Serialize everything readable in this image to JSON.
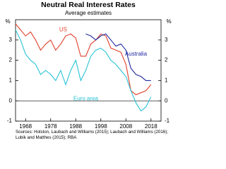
{
  "chart_data": {
    "type": "line",
    "title": "Neutral Real Interest Rates",
    "subtitle": "Average estimates",
    "y_unit": "%",
    "source": "Sources: Holston, Laubach and Williams (2015); Laubach and Williams (2016); Lubik and Matthes (2015); RBA",
    "x": [
      1964,
      1966,
      1968,
      1970,
      1972,
      1974,
      1976,
      1978,
      1980,
      1982,
      1984,
      1986,
      1988,
      1990,
      1992,
      1994,
      1996,
      1998,
      2000,
      2002,
      2004,
      2006,
      2008,
      2010,
      2012,
      2014,
      2016,
      2018
    ],
    "xlim": [
      1964,
      2022
    ],
    "xticks": [
      1968,
      1978,
      1988,
      1998,
      2008,
      2018
    ],
    "ylim": [
      -1,
      4
    ],
    "yticks": [
      -1,
      0,
      1,
      2,
      3
    ],
    "series": [
      {
        "name": "US",
        "color": "#e0402a",
        "values": [
          3.8,
          3.5,
          3.2,
          3.4,
          3.0,
          2.5,
          2.8,
          3.0,
          2.5,
          2.8,
          3.2,
          3.3,
          3.1,
          2.2,
          2.2,
          2.8,
          3.0,
          3.3,
          3.2,
          2.6,
          2.5,
          2.4,
          1.8,
          0.5,
          0.3,
          0.4,
          0.5,
          0.8
        ]
      },
      {
        "name": "Australia",
        "color": "#1f2aa0",
        "values": [
          null,
          null,
          null,
          null,
          null,
          null,
          null,
          null,
          null,
          null,
          null,
          null,
          null,
          null,
          3.3,
          3.2,
          3.0,
          3.2,
          3.3,
          3.0,
          2.7,
          2.8,
          2.5,
          1.6,
          1.3,
          1.2,
          1.0,
          1.0
        ]
      },
      {
        "name": "Euro area",
        "color": "#2ac3d6",
        "values": [
          3.5,
          3.0,
          2.3,
          2.0,
          1.8,
          1.3,
          1.5,
          1.3,
          1.0,
          1.5,
          0.8,
          1.5,
          2.0,
          1.0,
          1.5,
          2.2,
          2.5,
          2.6,
          2.4,
          2.0,
          1.8,
          1.5,
          1.2,
          0.5,
          -0.1,
          -0.5,
          -0.3,
          0.2
        ]
      }
    ]
  }
}
